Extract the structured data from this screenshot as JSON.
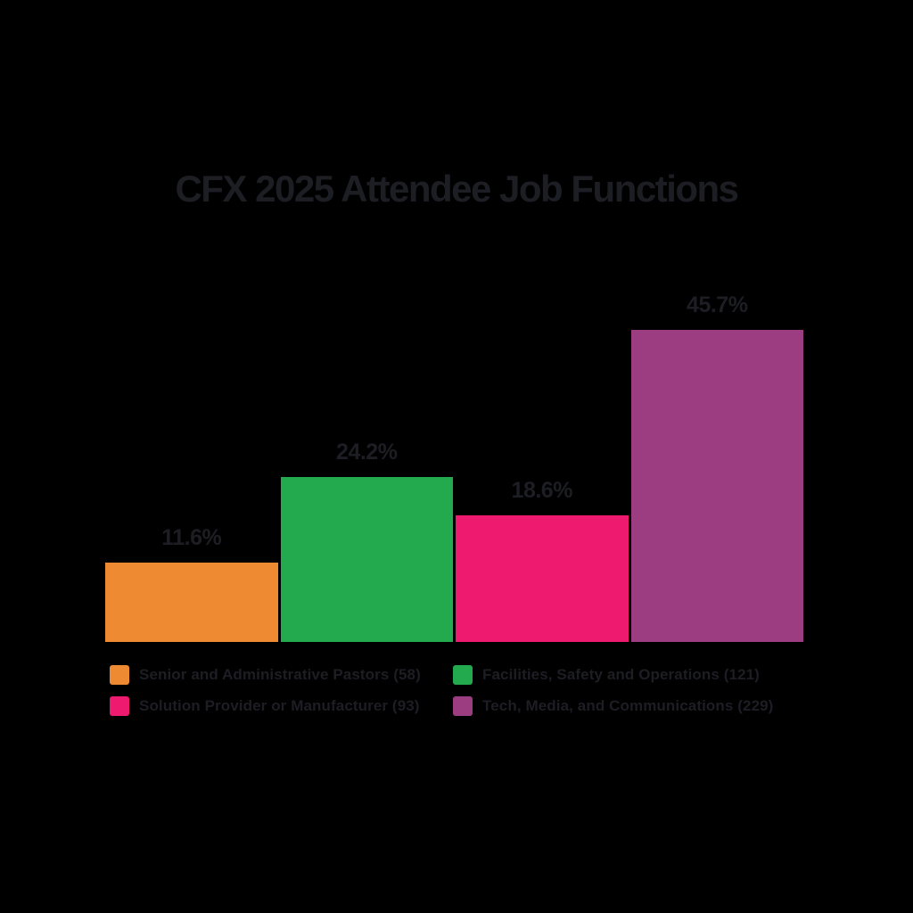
{
  "title": "CFX 2025 Attendee Job Functions",
  "colors": {
    "background": "#000000",
    "text": "#1d1d24",
    "orange": "#EE8A31",
    "green": "#23A94E",
    "pink": "#ED1A70",
    "purple": "#9C3D81"
  },
  "chart_data": {
    "type": "bar",
    "title": "CFX 2025 Attendee Job Functions",
    "categories": [
      "Senior and Administrative Pastors",
      "Facilities, Safety and Operations",
      "Solution Provider or Manufacturer",
      "Tech, Media, and Communications"
    ],
    "values": [
      11.6,
      24.2,
      18.6,
      45.7
    ],
    "counts": [
      58,
      121,
      93,
      229
    ],
    "unit": "%",
    "ylim": [
      0,
      50
    ],
    "grid": false,
    "axes_visible": false,
    "legend_position": "bottom",
    "bars": [
      {
        "label": "11.6%",
        "value": 11.6,
        "count": 58,
        "color": "#EE8A31",
        "legend": "Senior and Administrative Pastors (58)"
      },
      {
        "label": "24.2%",
        "value": 24.2,
        "count": 121,
        "color": "#23A94E",
        "legend": "Facilities, Safety and Operations (121)"
      },
      {
        "label": "18.6%",
        "value": 18.6,
        "count": 93,
        "color": "#ED1A70",
        "legend": "Solution Provider or Manufacturer (93)"
      },
      {
        "label": "45.7%",
        "value": 45.7,
        "count": 229,
        "color": "#9C3D81",
        "legend": "Tech, Media, and Communications (229)"
      }
    ]
  }
}
